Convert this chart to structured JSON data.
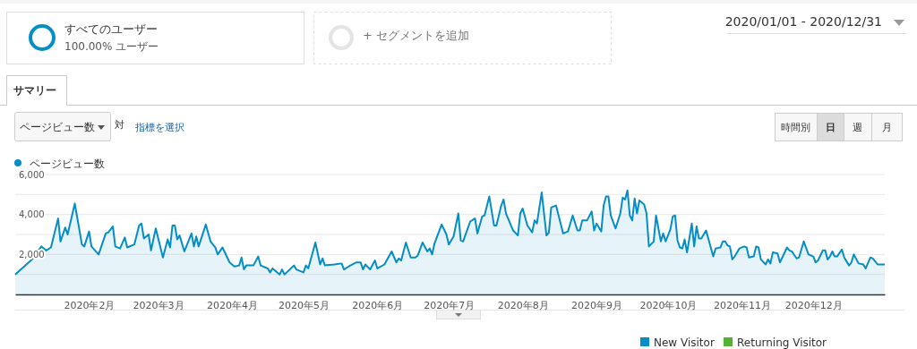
{
  "chart_data": {
    "type": "area",
    "legend": "top left",
    "grid": "y",
    "xlim": [
      "2020-01-01",
      "2020-12-31"
    ],
    "xticks": [
      {
        "value": "2020-02-01",
        "label": "2020年2月"
      },
      {
        "value": "2020-03-01",
        "label": "2020年3月"
      },
      {
        "value": "2020-04-01",
        "label": "2020年4月"
      },
      {
        "value": "2020-05-01",
        "label": "2020年5月"
      },
      {
        "value": "2020-06-01",
        "label": "2020年6月"
      },
      {
        "value": "2020-07-01",
        "label": "2020年7月"
      },
      {
        "value": "2020-08-01",
        "label": "2020年8月"
      },
      {
        "value": "2020-09-01",
        "label": "2020年9月"
      },
      {
        "value": "2020-10-01",
        "label": "2020年10月"
      },
      {
        "value": "2020-11-01",
        "label": "2020年11月"
      },
      {
        "value": "2020-12-01",
        "label": "2020年12月"
      }
    ],
    "ylim": [
      0,
      6000
    ],
    "yticks": [
      {
        "value": 1000,
        "label": null
      },
      {
        "value": 2000,
        "label": "2,000"
      },
      {
        "value": 3000,
        "label": null
      },
      {
        "value": 4000,
        "label": "4,000"
      },
      {
        "value": 5000,
        "label": null
      },
      {
        "value": 6000,
        "label": "6,000"
      }
    ],
    "annotations": [
      "すべてのユーザー",
      "100.00% ユーザー",
      "+ セグメントを追加",
      "2020/01/01 - 2020/12/31",
      "サマリー",
      "ページビュー数",
      "対",
      "指標を選択",
      "時間別",
      "日",
      "週",
      "月",
      "New Visitor",
      "Returning Visitor"
    ],
    "x": [
      "2020-01-01",
      "2020-01-08",
      "2020-01-12",
      "2020-01-14",
      "2020-01-16",
      "2020-01-19",
      "2020-01-20",
      "2020-01-22",
      "2020-01-23",
      "2020-01-26",
      "2020-01-29",
      "2020-01-30",
      "2020-02-01",
      "2020-02-02",
      "2020-02-05",
      "2020-02-08",
      "2020-02-09",
      "2020-02-11",
      "2020-02-12",
      "2020-02-14",
      "2020-02-16",
      "2020-02-17",
      "2020-02-20",
      "2020-02-22",
      "2020-02-23",
      "2020-02-24",
      "2020-02-26",
      "2020-02-27",
      "2020-02-29",
      "2020-03-03",
      "2020-03-05",
      "2020-03-06",
      "2020-03-07",
      "2020-03-08",
      "2020-03-09",
      "2020-03-10",
      "2020-03-12",
      "2020-03-15",
      "2020-03-16",
      "2020-03-17",
      "2020-03-18",
      "2020-03-21",
      "2020-03-23",
      "2020-03-25",
      "2020-03-26",
      "2020-03-28",
      "2020-03-31",
      "2020-04-02",
      "2020-04-04",
      "2020-04-05",
      "2020-04-06",
      "2020-04-07",
      "2020-04-10",
      "2020-04-12",
      "2020-04-13",
      "2020-04-16",
      "2020-04-17",
      "2020-04-18",
      "2020-04-21",
      "2020-04-22",
      "2020-04-23",
      "2020-04-27",
      "2020-04-28",
      "2020-05-01",
      "2020-05-02",
      "2020-05-03",
      "2020-05-06",
      "2020-05-08",
      "2020-05-09",
      "2020-05-10",
      "2020-05-14",
      "2020-05-17",
      "2020-05-18",
      "2020-05-20",
      "2020-05-23",
      "2020-05-25",
      "2020-05-26",
      "2020-05-27",
      "2020-05-29",
      "2020-05-31",
      "2020-06-01",
      "2020-06-04",
      "2020-06-07",
      "2020-06-09",
      "2020-06-10",
      "2020-06-11",
      "2020-06-13",
      "2020-06-15",
      "2020-06-17",
      "2020-06-18",
      "2020-06-20",
      "2020-06-22",
      "2020-06-23",
      "2020-06-24",
      "2020-06-25",
      "2020-06-28",
      "2020-06-30",
      "2020-07-01",
      "2020-07-03",
      "2020-07-05",
      "2020-07-06",
      "2020-07-07",
      "2020-07-10",
      "2020-07-12",
      "2020-07-13",
      "2020-07-15",
      "2020-07-16",
      "2020-07-18",
      "2020-07-20",
      "2020-07-21",
      "2020-07-23",
      "2020-07-24",
      "2020-07-25",
      "2020-07-28",
      "2020-07-30",
      "2020-07-31",
      "2020-08-01",
      "2020-08-03",
      "2020-08-05",
      "2020-08-06",
      "2020-08-07",
      "2020-08-09",
      "2020-08-11",
      "2020-08-12",
      "2020-08-13",
      "2020-08-15",
      "2020-08-18",
      "2020-08-20",
      "2020-08-22",
      "2020-08-24",
      "2020-08-25",
      "2020-08-26",
      "2020-08-28",
      "2020-08-30",
      "2020-08-31",
      "2020-09-01",
      "2020-09-03",
      "2020-09-04",
      "2020-09-05",
      "2020-09-06",
      "2020-09-07",
      "2020-09-09",
      "2020-09-11",
      "2020-09-12",
      "2020-09-13",
      "2020-09-14",
      "2020-09-15",
      "2020-09-16",
      "2020-09-17",
      "2020-09-18",
      "2020-09-19",
      "2020-09-21",
      "2020-09-22",
      "2020-09-23",
      "2020-09-25",
      "2020-09-26",
      "2020-09-28",
      "2020-09-29",
      "2020-09-30",
      "2020-10-02",
      "2020-10-03",
      "2020-10-04",
      "2020-10-05",
      "2020-10-06",
      "2020-10-07",
      "2020-10-08",
      "2020-10-09",
      "2020-10-11",
      "2020-10-12",
      "2020-10-13",
      "2020-10-14",
      "2020-10-15",
      "2020-10-17",
      "2020-10-20",
      "2020-10-21",
      "2020-10-23",
      "2020-10-24",
      "2020-10-25",
      "2020-10-26",
      "2020-10-27",
      "2020-10-28",
      "2020-10-29",
      "2020-10-31",
      "2020-11-02",
      "2020-11-03",
      "2020-11-04",
      "2020-11-06",
      "2020-11-07",
      "2020-11-08",
      "2020-11-09",
      "2020-11-11",
      "2020-11-12",
      "2020-11-13",
      "2020-11-14",
      "2020-11-16",
      "2020-11-17",
      "2020-11-20",
      "2020-11-21",
      "2020-11-22",
      "2020-11-24",
      "2020-11-25",
      "2020-11-27",
      "2020-11-29",
      "2020-12-01",
      "2020-12-02",
      "2020-12-03",
      "2020-12-05",
      "2020-12-06",
      "2020-12-07",
      "2020-12-08",
      "2020-12-09",
      "2020-12-10",
      "2020-12-11",
      "2020-12-13",
      "2020-12-14",
      "2020-12-16",
      "2020-12-17",
      "2020-12-18",
      "2020-12-20",
      "2020-12-22",
      "2020-12-23",
      "2020-12-25",
      "2020-12-26",
      "2020-12-28",
      "2020-12-31"
    ],
    "series": [
      {
        "name": "ページビュー数",
        "color": "#058dc7",
        "values": [
          1000,
          1750,
          2400,
          2200,
          2350,
          3800,
          2650,
          3350,
          3000,
          4550,
          2500,
          2400,
          3150,
          2400,
          2000,
          3050,
          3100,
          3400,
          2400,
          2300,
          2850,
          2350,
          2500,
          3450,
          3550,
          2800,
          3000,
          2200,
          3300,
          1850,
          2750,
          2350,
          3450,
          3450,
          2750,
          2950,
          2150,
          3050,
          2400,
          2900,
          2400,
          3500,
          2650,
          2350,
          2000,
          2350,
          1600,
          1400,
          1450,
          1850,
          1250,
          1450,
          1450,
          1900,
          1450,
          1300,
          1100,
          1300,
          1000,
          1250,
          1000,
          1450,
          1250,
          1100,
          1450,
          1300,
          2600,
          1500,
          1800,
          1450,
          1500,
          1550,
          1250,
          1400,
          1600,
          1600,
          1250,
          1500,
          1250,
          1700,
          1300,
          1500,
          2150,
          1600,
          1800,
          1700,
          2600,
          1850,
          1850,
          1950,
          2600,
          2150,
          2300,
          2000,
          2550,
          3500,
          3000,
          2500,
          2900,
          4050,
          2700,
          2650,
          3650,
          3800,
          3050,
          3900,
          3950,
          4900,
          3450,
          3450,
          4450,
          4750,
          4050,
          3200,
          2950,
          4050,
          4300,
          3450,
          3100,
          3700,
          3550,
          5100,
          2950,
          3100,
          4350,
          4450,
          3050,
          3150,
          3950,
          3200,
          3200,
          3700,
          3700,
          4150,
          3200,
          3550,
          3150,
          4450,
          4900,
          4900,
          3950,
          3300,
          4050,
          4850,
          4750,
          5200,
          3950,
          3700,
          4800,
          4050,
          4700,
          4500,
          4050,
          2400,
          2650,
          3950,
          2650,
          3050,
          2650,
          3250,
          3900,
          3950,
          2700,
          2350,
          2300,
          2750,
          2100,
          3550,
          2400,
          3400,
          2800,
          2800,
          3200,
          1900,
          2300,
          2350,
          2650,
          2650,
          2450,
          2400,
          1750,
          1900,
          2300,
          2400,
          2350,
          1850,
          1900,
          2400,
          2350,
          1750,
          1500,
          1750,
          1550,
          2100,
          2050,
          1600,
          2350,
          2200,
          2150,
          1800,
          1850,
          2650,
          2000,
          1900,
          1600,
          1700,
          2200,
          2200,
          1750,
          1900,
          2150,
          1900,
          1900,
          2250,
          1850,
          1450,
          1600,
          2000,
          1550,
          1500,
          1300,
          1850,
          1800,
          1500,
          1500
        ]
      }
    ]
  }
}
